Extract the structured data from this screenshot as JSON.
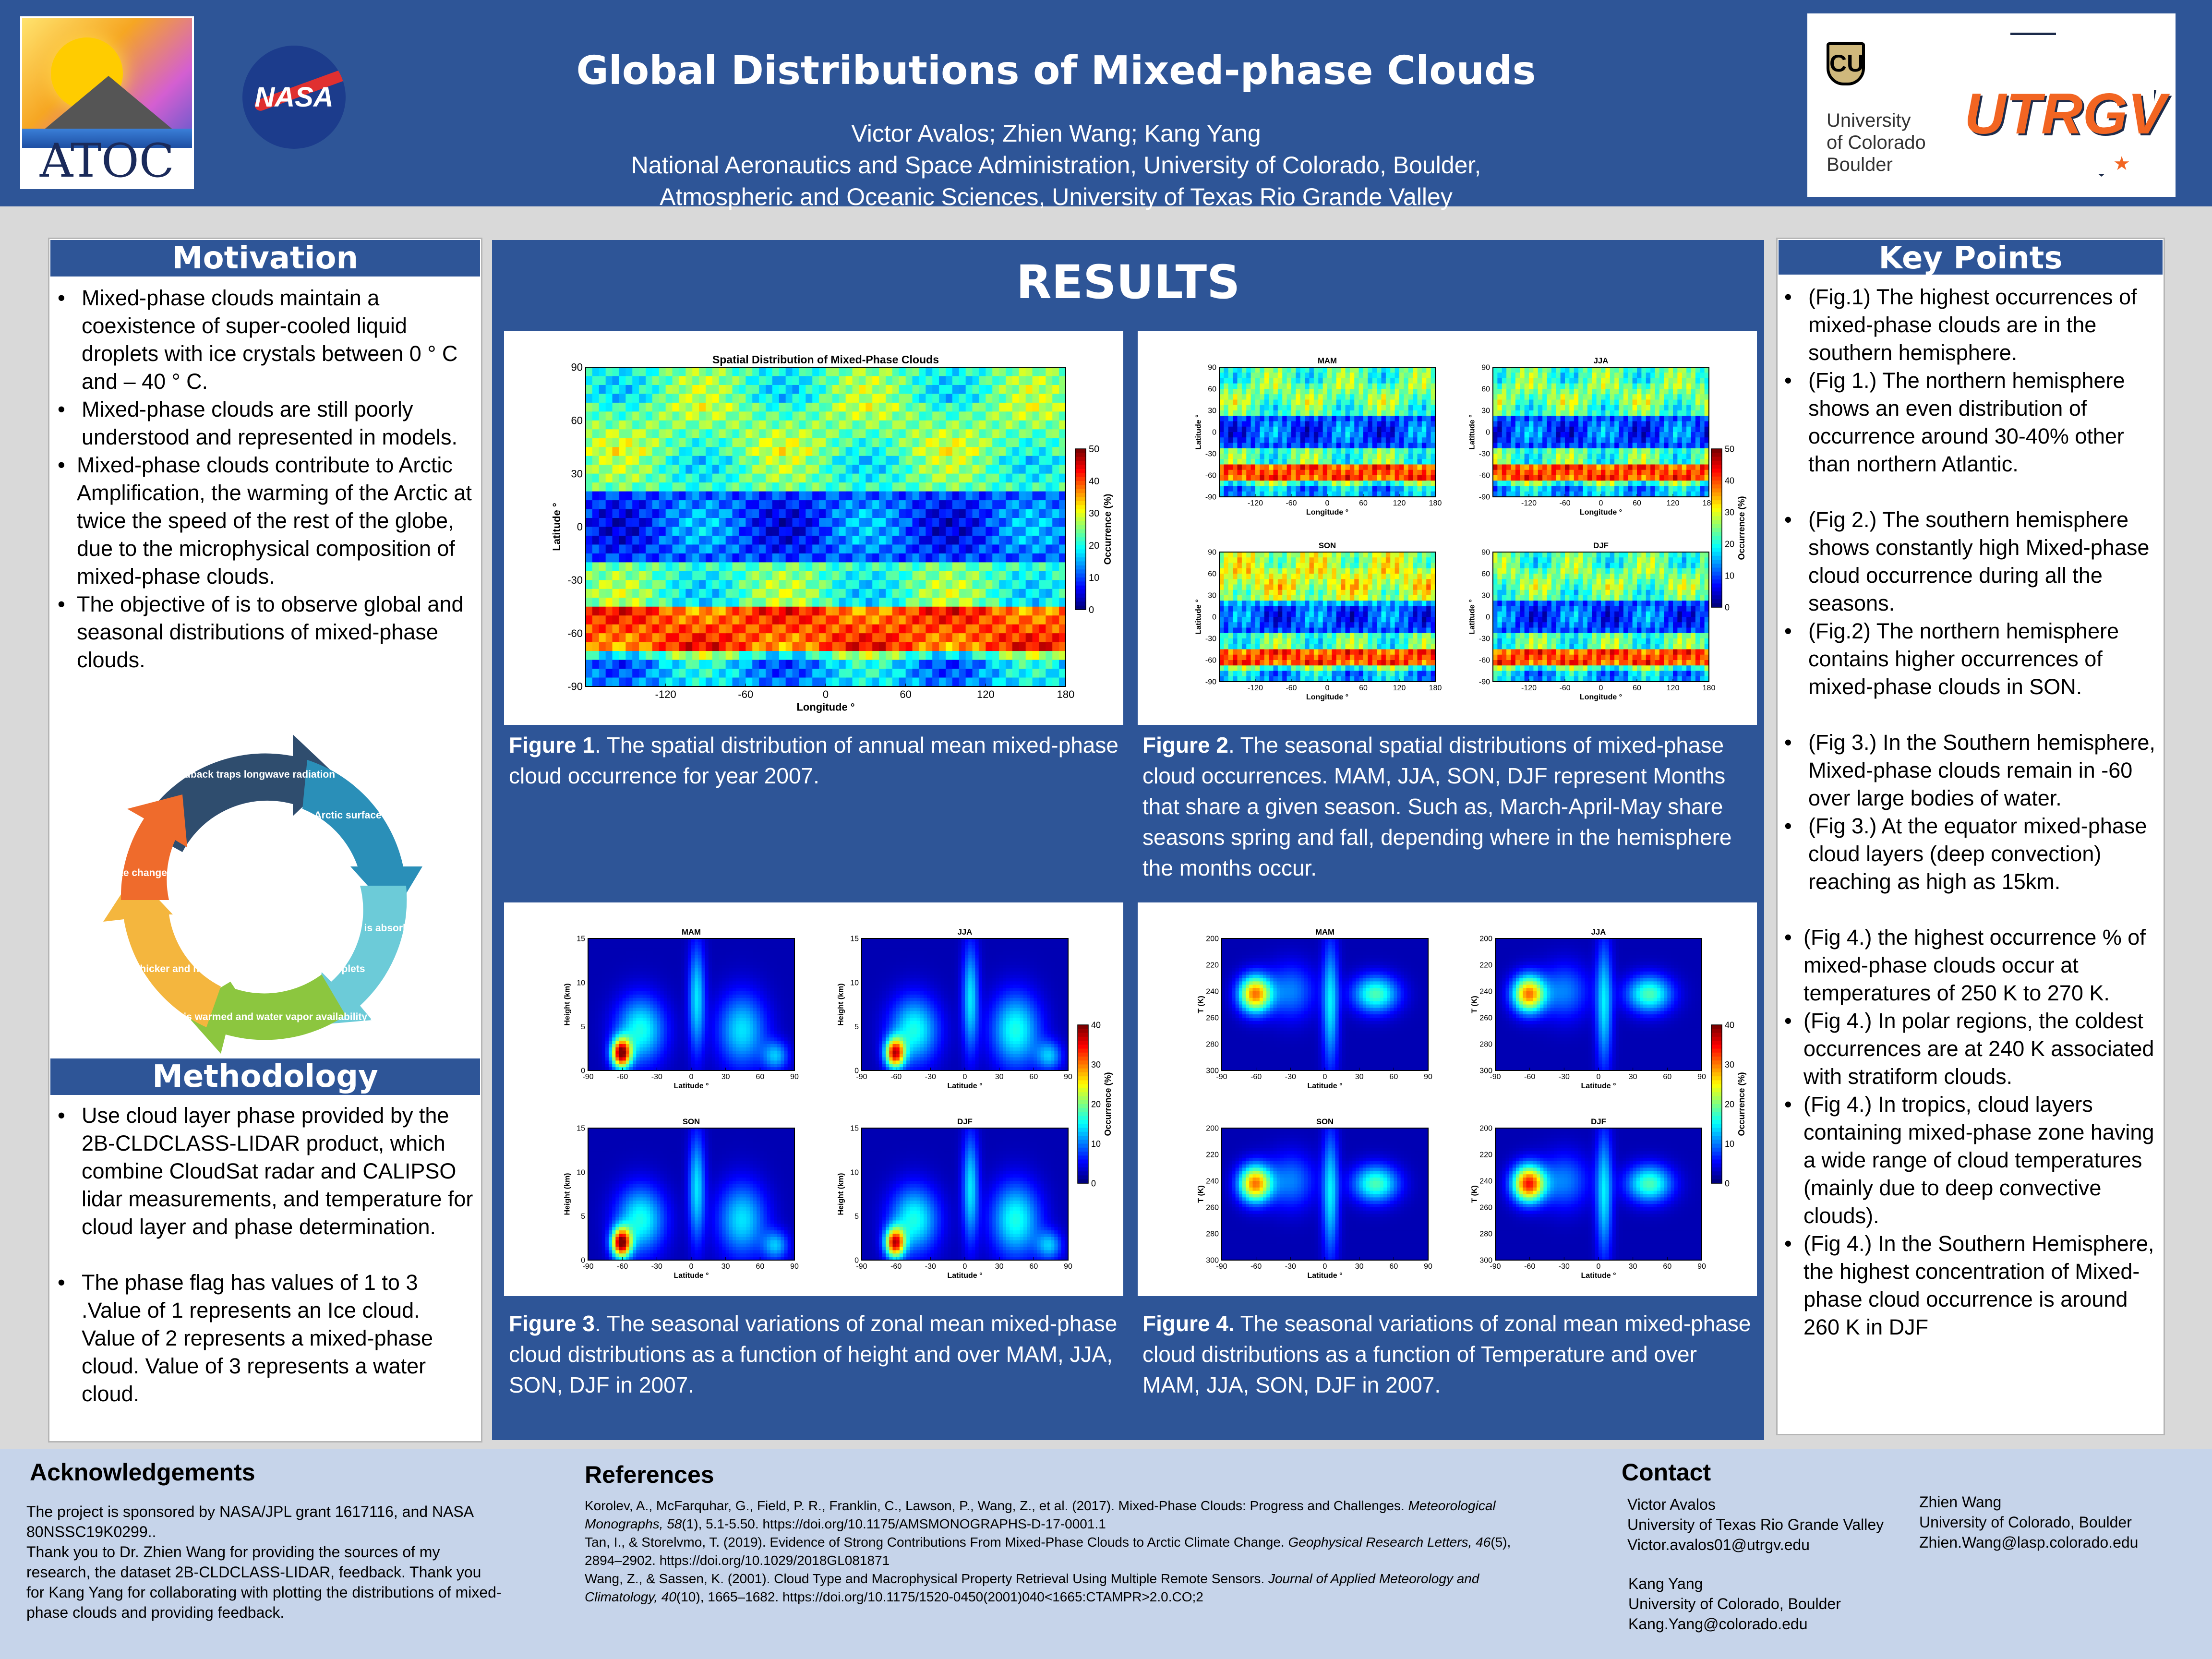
{
  "header": {
    "title": "Global Distributions of Mixed-phase Clouds",
    "authors": "Victor Avalos; Zhien Wang; Kang Yang",
    "affil1": "National Aeronautics and Space Administration, University of Colorado, Boulder,",
    "affil2": "Atmospheric and Oceanic Sciences, University of Texas Rio Grande Valley",
    "logo_atoc": "ATOC",
    "logo_nasa": "NASA",
    "logo_cu_l1": "University",
    "logo_cu_l2": "of Colorado",
    "logo_cu_l3": "Boulder",
    "logo_utrgv": "UTRGV"
  },
  "motivation": {
    "title": "Motivation",
    "items": [
      "Mixed-phase clouds maintain a coexistence of super-cooled liquid droplets with ice crystals between 0 ° C and – 40 ° C.",
      "Mixed-phase clouds are still poorly understood and represented in models.",
      "Mixed-phase clouds contribute to Arctic Amplification, the warming of the Arctic at twice the speed of the rest of the globe, due to the microphysical composition of mixed-phase clouds.",
      "The objective of is to observe global and seasonal distributions of mixed-phase clouds."
    ],
    "cycle": [
      "Cloud phase feedback traps longwave radiation",
      "Arctic surface melts",
      "Longwave radiation is absorbed into the ocean",
      "Ocean is warmed and water vapor availability increases",
      "Mixed-phase clouds are optically thicker and have small abundant liquid droplets",
      "Arctic climate change is amplified"
    ]
  },
  "methodology": {
    "title": "Methodology",
    "items": [
      "Use cloud layer phase provided by the 2B-CLDCLASS-LIDAR product, which combine CloudSat radar and CALIPSO lidar measurements, and temperature for cloud layer and phase determination.",
      "The phase flag has values of 1 to 3 .Value of 1 represents an Ice cloud. Value of 2 represents a mixed-phase cloud.  Value of 3 represents a water cloud."
    ]
  },
  "results": {
    "title": "RESULTS",
    "fig1_label": "Figure 1",
    "fig1_caption": ". The spatial distribution of annual mean mixed-phase cloud occurrence for year 2007.",
    "fig2_label": "Figure 2",
    "fig2_caption": ". The seasonal spatial distributions of mixed-phase cloud occurrences. MAM, JJA, SON, DJF represent Months that share a given season. Such as, March-April-May share seasons spring and fall, depending where in the hemisphere the months occur.",
    "fig3_label": "Figure 3",
    "fig3_caption": ". The seasonal variations of zonal mean mixed-phase cloud distributions as a function of height and over MAM, JJA, SON, DJF in 2007.",
    "fig4_label": "Figure 4.",
    "fig4_caption": " The seasonal variations of zonal mean mixed-phase cloud distributions as a function of Temperature and over MAM, JJA, SON, DJF in 2007."
  },
  "chart_data": [
    {
      "type": "heatmap",
      "title": "Spatial Distribution of Mixed-Phase Clouds",
      "xlabel": "Longitude °",
      "ylabel": "Latitude °",
      "xticks": [
        "-120",
        "-60",
        "0",
        "60",
        "120",
        "180"
      ],
      "yticks": [
        "90",
        "60",
        "30",
        "0",
        "-30",
        "-60",
        "-90"
      ],
      "colorbar_label": "Occurrence (%)",
      "colorbar_ticks": [
        "50",
        "40",
        "30",
        "20",
        "10",
        "0"
      ]
    },
    {
      "type": "heatmap",
      "panels": [
        "MAM",
        "JJA",
        "SON",
        "DJF"
      ],
      "xlabel": "Longitude °",
      "ylabel": "Latitude °",
      "xticks": [
        "-120",
        "-60",
        "0",
        "60",
        "120",
        "180"
      ],
      "yticks": [
        "90",
        "60",
        "30",
        "0",
        "-30",
        "-60",
        "-90"
      ],
      "colorbar_label": "Occurrence (%)",
      "colorbar_ticks": [
        "50",
        "40",
        "30",
        "20",
        "10",
        "0"
      ]
    },
    {
      "type": "heatmap",
      "panels": [
        "MAM",
        "JJA",
        "SON",
        "DJF"
      ],
      "xlabel": "Latitude °",
      "ylabel": "Height (km)",
      "xticks": [
        "-90",
        "-60",
        "-30",
        "0",
        "30",
        "60",
        "90"
      ],
      "yticks": [
        "15",
        "10",
        "5",
        "0"
      ],
      "colorbar_label": "Occurrence (%)",
      "colorbar_ticks": [
        "40",
        "30",
        "20",
        "10",
        "0"
      ]
    },
    {
      "type": "heatmap",
      "panels": [
        "MAM",
        "JJA",
        "SON",
        "DJF"
      ],
      "xlabel": "Latitude °",
      "ylabel": "T (K)",
      "xticks": [
        "-90",
        "-60",
        "-30",
        "0",
        "30",
        "60",
        "90"
      ],
      "yticks": [
        "200",
        "220",
        "240",
        "260",
        "280",
        "300"
      ],
      "colorbar_label": "Occurrence (%)",
      "colorbar_ticks": [
        "40",
        "30",
        "20",
        "10",
        "0"
      ]
    }
  ],
  "key_points": {
    "title": "Key Points",
    "items": [
      "(Fig.1) The highest occurrences of mixed-phase clouds are in the southern hemisphere.",
      "(Fig 1.) The northern hemisphere shows an even distribution of occurrence around 30-40% other than northern Atlantic.",
      "(Fig 2.) The southern hemisphere shows constantly high Mixed-phase cloud occurrence during all the seasons.",
      "(Fig.2) The northern hemisphere contains higher occurrences of mixed-phase clouds in SON.",
      "(Fig 3.) In the Southern hemisphere, Mixed-phase clouds remain in -60 over large bodies of water.",
      "(Fig 3.) At the equator mixed-phase cloud layers (deep convection) reaching as high as 15km.",
      "(Fig 4.) the highest occurrence % of mixed-phase clouds occur at temperatures of 250 K to 270 K.",
      "(Fig 4.) In polar regions, the coldest occurrences are at 240 K associated with stratiform clouds.",
      "(Fig 4.) In tropics, cloud layers containing mixed-phase zone having a wide range of cloud temperatures (mainly due to deep convective clouds).",
      "(Fig 4.) In the Southern Hemisphere, the highest concentration of Mixed-phase cloud occurrence is around 260 K in DJF"
    ]
  },
  "footer": {
    "ack_title": "Acknowledgements",
    "ack_text1": "The project is sponsored by NASA/JPL grant 1617116, and NASA 80NSSC19K0299..",
    "ack_text2": "Thank you to Dr. Zhien Wang for providing the sources of my research, the dataset 2B-CLDCLASS-LIDAR, feedback. Thank you for Kang Yang for collaborating with plotting the distributions of mixed-phase clouds and providing feedback.",
    "ref_title": "References",
    "ref1_a": "Korolev, A., McFarquhar, G., Field, P. R., Franklin, C., Lawson, P., Wang, Z., et al. (2017). Mixed-Phase Clouds: Progress and Challenges.",
    "ref1_j": "Meteorological Monographs, 58",
    "ref1_b": "(1), 5.1-5.50. https://doi.org/10.1175/AMSMONOGRAPHS-D-17-0001.1",
    "ref2_a": "Tan, I., & Storelvmo, T. (2019). Evidence of Strong Contributions From Mixed-Phase Clouds to Arctic Climate Change.",
    "ref2_j": "Geophysical Research Letters, 46",
    "ref2_b": "(5), 2894–2902. https://doi.org/10.1029/2018GL081871",
    "ref3_a": "Wang, Z., & Sassen, K. (2001). Cloud Type and Macrophysical Property Retrieval Using Multiple Remote Sensors.",
    "ref3_j": "Journal of Applied Meteorology and Climatology, 40",
    "ref3_b": "(10), 1665–1682. https://doi.org/10.1175/1520-0450(2001)040<1665:CTAMPR>2.0.CO;2",
    "contact_title": "Contact",
    "c1_name": "Victor Avalos",
    "c1_org": "University of Texas Rio Grande Valley",
    "c1_email": "Victor.avalos01@utrgv.edu",
    "c2_name": "Zhien Wang",
    "c2_org": "University of Colorado, Boulder",
    "c2_email": "Zhien.Wang@lasp.colorado.edu",
    "c3_name": "Kang Yang",
    "c3_org": "University of Colorado, Boulder",
    "c3_email": "Kang.Yang@colorado.edu"
  },
  "colors": {
    "header_blue": "#2e5597",
    "footer_blue": "#c6d4ea",
    "panel_border": "#b5b5b5"
  }
}
